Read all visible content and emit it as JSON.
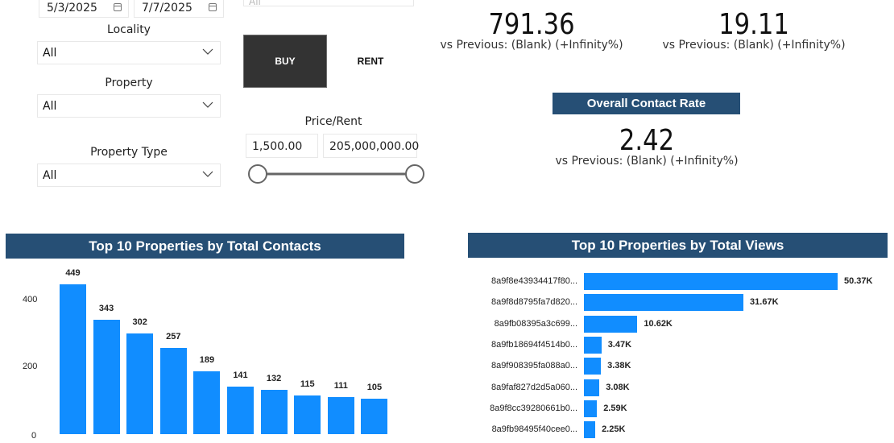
{
  "filters": {
    "date_start": "5/3/2025",
    "date_end": "7/7/2025",
    "top_dropdown_value": "All",
    "locality": {
      "label": "Locality",
      "value": "All"
    },
    "property": {
      "label": "Property",
      "value": "All"
    },
    "property_type": {
      "label": "Property Type",
      "value": "All"
    },
    "listing_toggle": {
      "buy_label": "BUY",
      "rent_label": "RENT",
      "selected": "BUY"
    },
    "price_rent": {
      "label": "Price/Rent",
      "min": "1,500.00",
      "max": "205,000,000.00"
    }
  },
  "kpis": [
    {
      "value": "791.36",
      "comparison": "vs Previous: (Blank) (+Infinity%)"
    },
    {
      "value": "19.11",
      "comparison": "vs Previous: (Blank) (+Infinity%)"
    },
    {
      "title": "Overall Contact Rate",
      "value": "2.42",
      "comparison": "vs Previous: (Blank) (+Infinity%)"
    }
  ],
  "colors": {
    "bar": "#118dff",
    "title_bg": "#264f75",
    "button_active": "#333333"
  },
  "chart_data": [
    {
      "type": "bar",
      "title": "Top 10 Properties by Total Contacts",
      "xlabel": "",
      "ylabel": "",
      "ylim": [
        0,
        480
      ],
      "yticks": [
        "0",
        "200",
        "400"
      ],
      "ytick_values": [
        0,
        200,
        400
      ],
      "values": [
        449,
        343,
        302,
        257,
        189,
        141,
        132,
        115,
        111,
        105
      ],
      "labels": [
        "449",
        "343",
        "302",
        "257",
        "189",
        "141",
        "132",
        "115",
        "111",
        "105"
      ]
    },
    {
      "type": "bar",
      "orientation": "horizontal",
      "title": "Top 10 Properties by Total Views",
      "categories": [
        "8a9f8e43934417f80...",
        "8a9f8d8795fa7d820...",
        "8a9fb08395a3c699...",
        "8a9fb18694f4514b0...",
        "8a9f908395fa088a0...",
        "8a9faf827d2d5a060...",
        "8a9f8cc39280661b0...",
        "8a9fb98495f40cee0..."
      ],
      "values": [
        50370,
        31670,
        10620,
        3470,
        3380,
        3080,
        2590,
        2250
      ],
      "labels": [
        "50.37K",
        "31.67K",
        "10.62K",
        "3.47K",
        "3.38K",
        "3.08K",
        "2.59K",
        "2.25K"
      ],
      "xlim": [
        0,
        50370
      ]
    }
  ]
}
